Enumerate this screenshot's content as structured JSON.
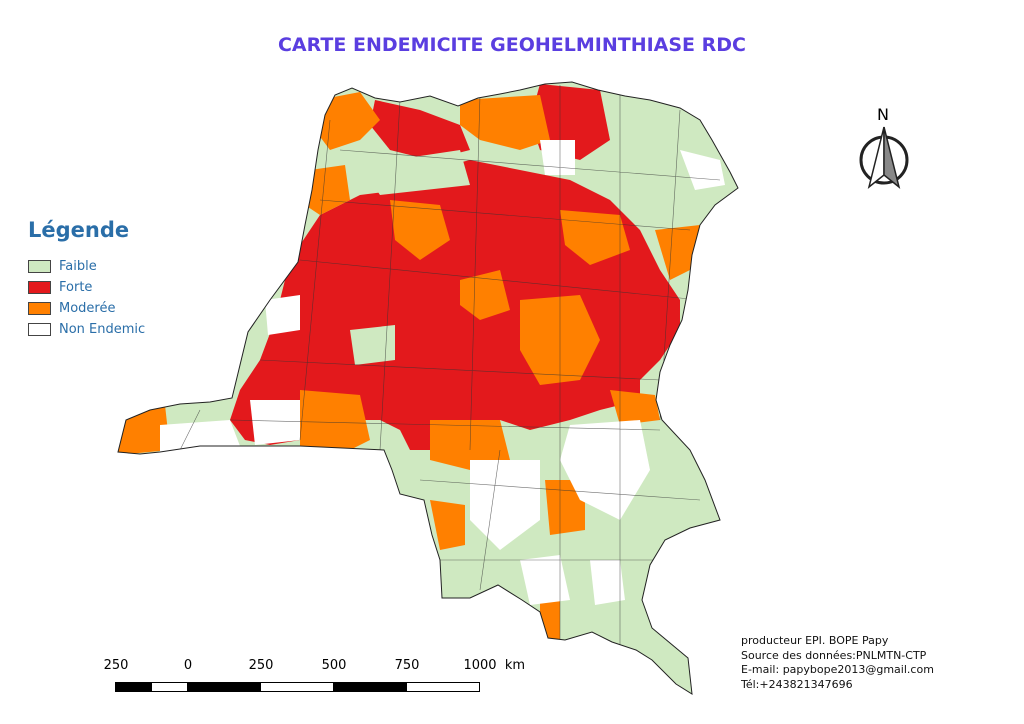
{
  "title": "CARTE ENDEMICITE GEOHELMINTHIASE RDC",
  "legend": {
    "title": "Légende",
    "items": [
      {
        "label": "Faible",
        "color": "#cfe9c1"
      },
      {
        "label": "Forte",
        "color": "#e3191c"
      },
      {
        "label": "Moderée",
        "color": "#ff8000"
      },
      {
        "label": "Non Endemic",
        "color": "#ffffff"
      }
    ]
  },
  "north_arrow": {
    "label": "N",
    "icon": "north-arrow-icon"
  },
  "scale_bar": {
    "ticks": [
      "250",
      "0",
      "250",
      "500",
      "750",
      "1000"
    ],
    "unit": "km"
  },
  "credits": {
    "producer": "producteur EPI. BOPE Papy",
    "source": "Source des données:PNLMTN-CTP",
    "email": "E-mail: papybope2013@gmail.com",
    "phone": "Tél:+243821347696"
  }
}
